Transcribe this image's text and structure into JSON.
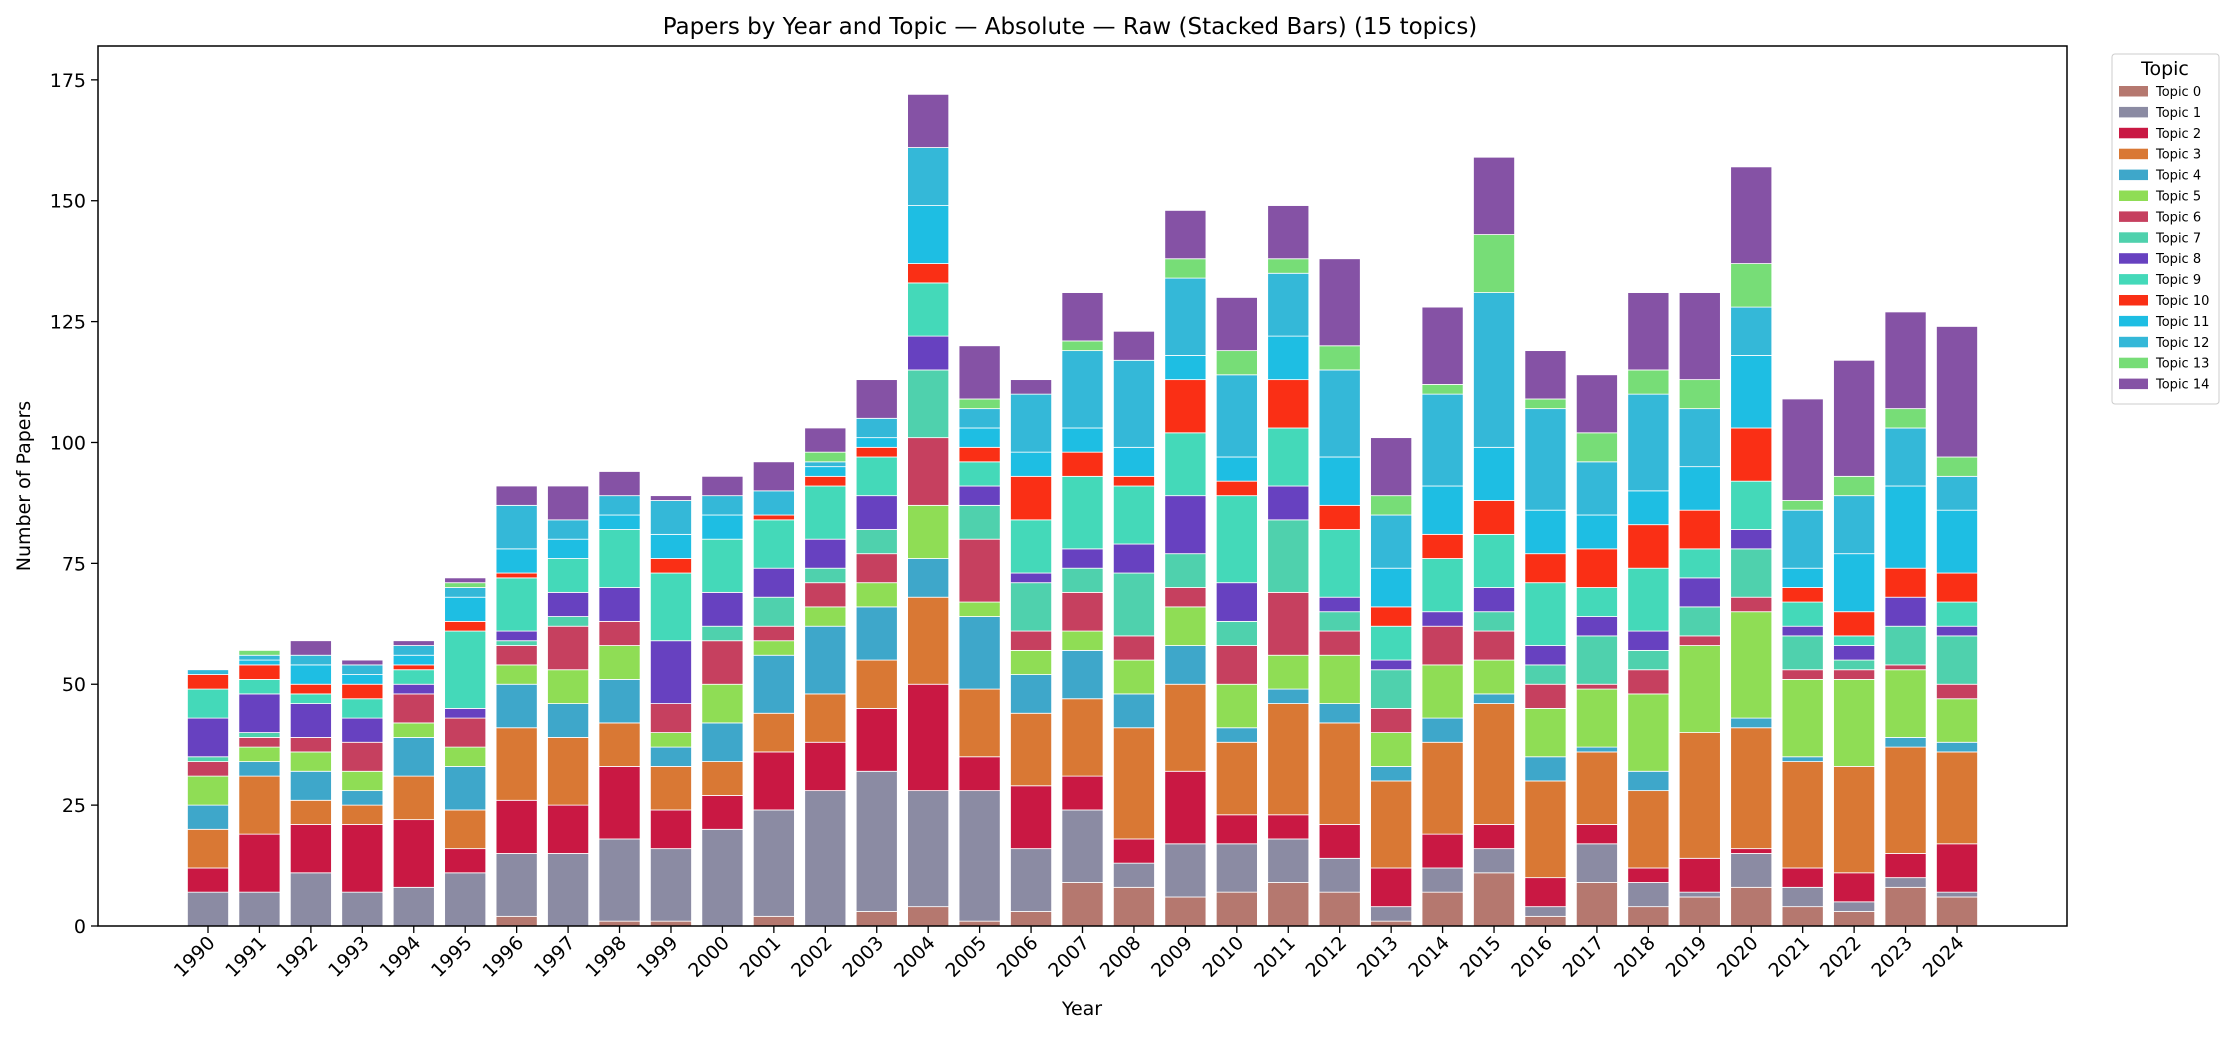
{
  "chart_data": {
    "type": "bar",
    "stacked": true,
    "title": "Papers by Year and Topic — Absolute — Raw (Stacked Bars) (15 topics)",
    "xlabel": "Year",
    "ylabel": "Number of Papers",
    "ylim": [
      0,
      182
    ],
    "yticks": [
      0,
      25,
      50,
      75,
      100,
      125,
      150,
      175
    ],
    "grid": false,
    "legend": {
      "title": "Topic",
      "placement": "outside-top-right"
    },
    "categories": [
      "1990",
      "1991",
      "1992",
      "1993",
      "1994",
      "1995",
      "1996",
      "1997",
      "1998",
      "1999",
      "2000",
      "2001",
      "2002",
      "2003",
      "2004",
      "2005",
      "2006",
      "2007",
      "2008",
      "2009",
      "2010",
      "2011",
      "2012",
      "2013",
      "2014",
      "2015",
      "2016",
      "2017",
      "2018",
      "2019",
      "2020",
      "2021",
      "2022",
      "2023",
      "2024"
    ],
    "series": [
      {
        "name": "Topic 0",
        "color": "#b5786f",
        "values": [
          0,
          0,
          0,
          0,
          0,
          0,
          2,
          0,
          1,
          1,
          0,
          2,
          0,
          3,
          4,
          1,
          3,
          9,
          8,
          6,
          7,
          9,
          7,
          1,
          7,
          11,
          2,
          9,
          4,
          6,
          8,
          4,
          3,
          8,
          6
        ]
      },
      {
        "name": "Topic 1",
        "color": "#8b8ba3",
        "values": [
          7,
          7,
          11,
          7,
          8,
          11,
          13,
          15,
          17,
          15,
          20,
          22,
          28,
          29,
          24,
          27,
          13,
          15,
          5,
          11,
          10,
          9,
          7,
          3,
          5,
          5,
          2,
          8,
          5,
          1,
          7,
          4,
          2,
          2,
          1
        ]
      },
      {
        "name": "Topic 2",
        "color": "#c91843",
        "values": [
          5,
          12,
          10,
          14,
          14,
          5,
          11,
          10,
          15,
          8,
          7,
          12,
          10,
          13,
          22,
          7,
          13,
          7,
          5,
          15,
          6,
          5,
          7,
          8,
          7,
          5,
          6,
          4,
          3,
          7,
          1,
          4,
          6,
          5,
          10
        ]
      },
      {
        "name": "Topic 3",
        "color": "#d97834",
        "values": [
          8,
          12,
          5,
          4,
          9,
          8,
          15,
          14,
          9,
          9,
          7,
          8,
          10,
          10,
          18,
          14,
          15,
          16,
          23,
          18,
          15,
          23,
          21,
          18,
          19,
          25,
          20,
          15,
          16,
          26,
          25,
          22,
          22,
          22,
          19
        ]
      },
      {
        "name": "Topic 4",
        "color": "#3ea7ca",
        "values": [
          5,
          3,
          6,
          3,
          8,
          9,
          9,
          7,
          9,
          4,
          8,
          12,
          14,
          11,
          8,
          15,
          8,
          10,
          7,
          8,
          3,
          3,
          4,
          3,
          5,
          2,
          5,
          1,
          4,
          0,
          2,
          1,
          0,
          2,
          2
        ]
      },
      {
        "name": "Topic 5",
        "color": "#8fdd55",
        "values": [
          6,
          3,
          4,
          4,
          3,
          4,
          4,
          7,
          7,
          3,
          8,
          3,
          4,
          5,
          11,
          3,
          5,
          4,
          7,
          8,
          9,
          7,
          10,
          7,
          11,
          7,
          10,
          12,
          16,
          18,
          22,
          16,
          18,
          14,
          9
        ]
      },
      {
        "name": "Topic 6",
        "color": "#c6405f",
        "values": [
          3,
          2,
          3,
          6,
          6,
          6,
          4,
          9,
          5,
          6,
          9,
          3,
          5,
          6,
          14,
          13,
          4,
          8,
          5,
          4,
          8,
          13,
          5,
          5,
          8,
          6,
          5,
          1,
          5,
          2,
          3,
          2,
          2,
          1,
          3
        ]
      },
      {
        "name": "Topic 7",
        "color": "#4fd1ad",
        "values": [
          1,
          1,
          0,
          0,
          0,
          0,
          1,
          2,
          0,
          0,
          3,
          6,
          3,
          5,
          14,
          7,
          10,
          5,
          13,
          7,
          5,
          15,
          4,
          8,
          0,
          4,
          4,
          10,
          4,
          6,
          10,
          7,
          2,
          8,
          10
        ]
      },
      {
        "name": "Topic 8",
        "color": "#6741c0",
        "values": [
          8,
          8,
          7,
          5,
          2,
          2,
          2,
          5,
          7,
          13,
          7,
          6,
          6,
          7,
          7,
          4,
          2,
          4,
          6,
          12,
          8,
          7,
          3,
          2,
          3,
          5,
          4,
          4,
          4,
          6,
          4,
          2,
          3,
          6,
          2
        ]
      },
      {
        "name": "Topic 9",
        "color": "#44d9b9",
        "values": [
          6,
          3,
          2,
          4,
          3,
          16,
          11,
          7,
          12,
          14,
          11,
          10,
          11,
          8,
          11,
          5,
          11,
          15,
          12,
          13,
          18,
          12,
          14,
          7,
          11,
          11,
          13,
          6,
          13,
          6,
          10,
          5,
          2,
          0,
          5
        ]
      },
      {
        "name": "Topic 10",
        "color": "#fa2f15",
        "values": [
          3,
          3,
          2,
          3,
          1,
          2,
          1,
          0,
          0,
          3,
          0,
          1,
          2,
          2,
          4,
          3,
          9,
          5,
          2,
          11,
          3,
          10,
          5,
          4,
          5,
          7,
          6,
          8,
          9,
          8,
          11,
          3,
          5,
          6,
          6
        ]
      },
      {
        "name": "Topic 11",
        "color": "#1ebee3",
        "values": [
          0,
          1,
          4,
          2,
          2,
          5,
          5,
          4,
          3,
          5,
          5,
          0,
          2,
          2,
          12,
          4,
          5,
          5,
          6,
          5,
          5,
          9,
          10,
          8,
          10,
          11,
          9,
          7,
          7,
          9,
          15,
          4,
          12,
          17,
          13
        ]
      },
      {
        "name": "Topic 12",
        "color": "#34b8d8",
        "values": [
          1,
          1,
          2,
          2,
          2,
          2,
          9,
          4,
          4,
          7,
          4,
          5,
          1,
          4,
          12,
          4,
          12,
          16,
          18,
          16,
          17,
          13,
          18,
          11,
          19,
          32,
          21,
          11,
          20,
          12,
          10,
          12,
          12,
          12,
          7
        ]
      },
      {
        "name": "Topic 13",
        "color": "#77dd77",
        "values": [
          0,
          1,
          0,
          0,
          0,
          1,
          0,
          0,
          0,
          0,
          0,
          0,
          2,
          0,
          0,
          2,
          0,
          2,
          0,
          4,
          5,
          3,
          5,
          4,
          2,
          12,
          2,
          6,
          5,
          6,
          9,
          2,
          4,
          4,
          4
        ]
      },
      {
        "name": "Topic 14",
        "color": "#8552a5",
        "values": [
          0,
          0,
          3,
          1,
          1,
          1,
          4,
          7,
          5,
          1,
          4,
          6,
          5,
          8,
          11,
          11,
          3,
          10,
          6,
          10,
          11,
          11,
          18,
          12,
          16,
          16,
          10,
          12,
          16,
          18,
          20,
          21,
          24,
          20,
          27
        ]
      }
    ]
  }
}
